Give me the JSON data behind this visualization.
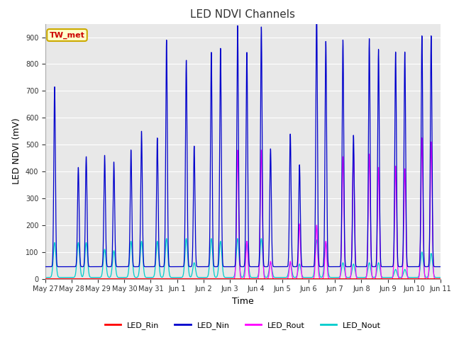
{
  "title": "LED NDVI Channels",
  "xlabel": "Time",
  "ylabel": "LED NDVI (mV)",
  "ylim": [
    0,
    950
  ],
  "yticks": [
    0,
    100,
    200,
    300,
    400,
    500,
    600,
    700,
    800,
    900
  ],
  "fig_bg": "#ffffff",
  "plot_bg": "#e8e8e8",
  "annotation_text": "TW_met",
  "annotation_bg": "#ffffcc",
  "annotation_border": "#ccaa00",
  "annotation_text_color": "#cc0000",
  "colors": {
    "LED_Rin": "#ff0000",
    "LED_Nin": "#0000cc",
    "LED_Rout": "#ff00ff",
    "LED_Nout": "#00cccc"
  },
  "x_tick_labels": [
    "May 27",
    "May 28",
    "May 29",
    "May 30",
    "May 31",
    "Jun 1",
    "Jun 2",
    "Jun 3",
    "Jun 4",
    "Jun 5",
    "Jun 6",
    "Jun 7",
    "Jun 8",
    "Jun 9",
    "Jun 10",
    "Jun 11"
  ],
  "pulses": [
    {
      "t": 0.35,
      "nin": 670,
      "nout": 130,
      "rout": 0,
      "rin": 0
    },
    {
      "t": 1.25,
      "nin": 370,
      "nout": 130,
      "rout": 0,
      "rin": 0
    },
    {
      "t": 1.55,
      "nin": 410,
      "nout": 130,
      "rout": 0,
      "rin": 0
    },
    {
      "t": 2.25,
      "nin": 415,
      "nout": 105,
      "rout": 0,
      "rin": 0
    },
    {
      "t": 2.6,
      "nin": 390,
      "nout": 100,
      "rout": 0,
      "rin": 0
    },
    {
      "t": 3.25,
      "nin": 435,
      "nout": 135,
      "rout": 0,
      "rin": 0
    },
    {
      "t": 3.65,
      "nin": 505,
      "nout": 135,
      "rout": 0,
      "rin": 0
    },
    {
      "t": 4.25,
      "nin": 480,
      "nout": 135,
      "rout": 0,
      "rin": 0
    },
    {
      "t": 4.6,
      "nin": 845,
      "nout": 145,
      "rout": 0,
      "rin": 0
    },
    {
      "t": 5.35,
      "nin": 770,
      "nout": 145,
      "rout": 0,
      "rin": 0
    },
    {
      "t": 5.65,
      "nin": 450,
      "nout": 55,
      "rout": 0,
      "rin": 0
    },
    {
      "t": 6.3,
      "nin": 800,
      "nout": 145,
      "rout": 0,
      "rin": 0
    },
    {
      "t": 6.65,
      "nin": 815,
      "nout": 135,
      "rout": 0,
      "rin": 0
    },
    {
      "t": 7.3,
      "nin": 900,
      "nout": 145,
      "rout": 480,
      "rin": 0
    },
    {
      "t": 7.65,
      "nin": 800,
      "nout": 135,
      "rout": 140,
      "rin": 0
    },
    {
      "t": 8.2,
      "nin": 895,
      "nout": 145,
      "rout": 480,
      "rin": 0
    },
    {
      "t": 8.55,
      "nin": 440,
      "nout": 55,
      "rout": 65,
      "rin": 0
    },
    {
      "t": 9.3,
      "nin": 495,
      "nout": 55,
      "rout": 65,
      "rin": 0
    },
    {
      "t": 9.65,
      "nin": 380,
      "nout": 50,
      "rout": 205,
      "rin": 0
    },
    {
      "t": 10.3,
      "nin": 960,
      "nout": 140,
      "rout": 200,
      "rin": 0
    },
    {
      "t": 10.65,
      "nin": 840,
      "nout": 130,
      "rout": 140,
      "rin": 0
    },
    {
      "t": 11.3,
      "nin": 845,
      "nout": 55,
      "rout": 455,
      "rin": 0
    },
    {
      "t": 11.7,
      "nin": 490,
      "nout": 50,
      "rout": 470,
      "rin": 0
    },
    {
      "t": 12.3,
      "nin": 850,
      "nout": 55,
      "rout": 465,
      "rin": 0
    },
    {
      "t": 12.65,
      "nin": 810,
      "nout": 55,
      "rout": 415,
      "rin": 0
    },
    {
      "t": 13.3,
      "nin": 800,
      "nout": 30,
      "rout": 420,
      "rin": 0
    },
    {
      "t": 13.65,
      "nin": 800,
      "nout": 30,
      "rout": 410,
      "rin": 0
    },
    {
      "t": 14.3,
      "nin": 860,
      "nout": 95,
      "rout": 525,
      "rin": 0
    },
    {
      "t": 14.65,
      "nin": 860,
      "nout": 90,
      "rout": 510,
      "rin": 0
    }
  ]
}
